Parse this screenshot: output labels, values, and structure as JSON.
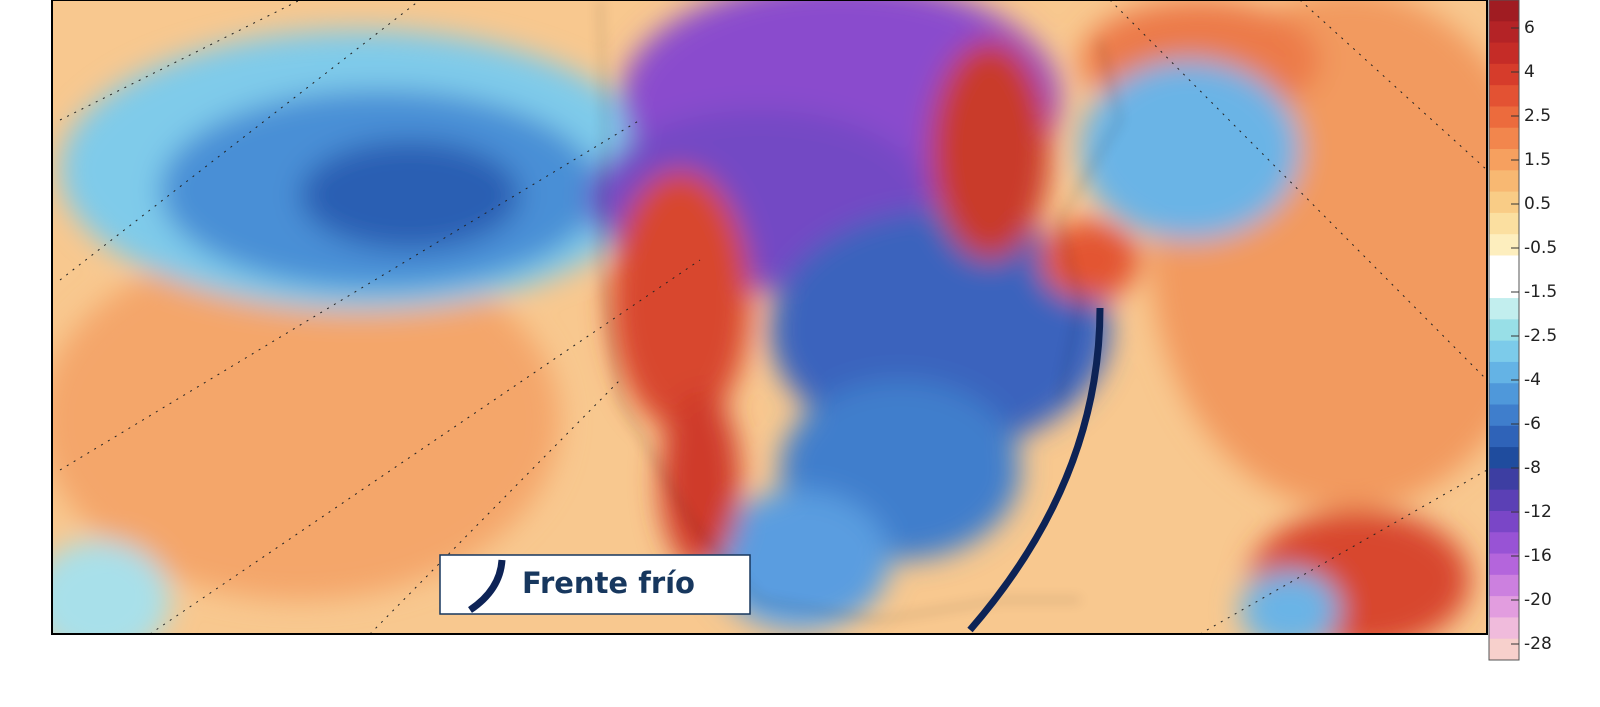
{
  "map": {
    "legend": {
      "label": "Frente frío"
    },
    "colorbar": {
      "labels": [
        "6",
        "4",
        "2.5",
        "1.5",
        "0.5",
        "-0.5",
        "-1.5",
        "-2.5",
        "-4",
        "-6",
        "-8",
        "-12",
        "-16",
        "-20",
        "-28"
      ],
      "colors": [
        "#a01c22",
        "#b42326",
        "#c52c27",
        "#d63c2b",
        "#e35233",
        "#ec6b3d",
        "#f2864d",
        "#f6a05f",
        "#f8b872",
        "#f9cc86",
        "#fbdfa0",
        "#fdeebe",
        "#ffffff",
        "#ffffff",
        "#c2eeee",
        "#98dfe7",
        "#7ccbea",
        "#64b3e5",
        "#4f98da",
        "#3f7ecc",
        "#2f63b8",
        "#1f4c9e",
        "#3d3ea2",
        "#5b40b5",
        "#7a46c7",
        "#9853d5",
        "#b465dc",
        "#cc80df",
        "#e29ddf",
        "#f0bbdc",
        "#f7d0cc"
      ]
    }
  }
}
